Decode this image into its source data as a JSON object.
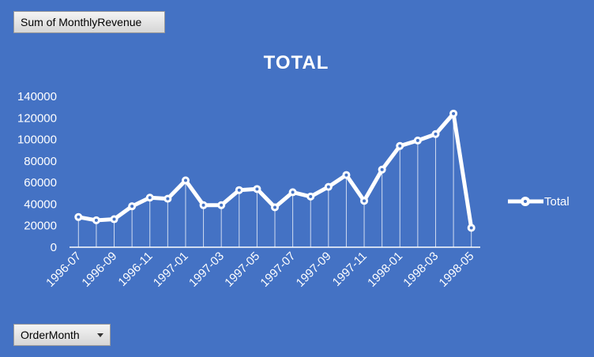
{
  "pivot": {
    "value_field": "Sum of MonthlyRevenue",
    "axis_field": "OrderMonth"
  },
  "colors": {
    "background": "#4472C4",
    "series": "#FFFFFF"
  },
  "chart_data": {
    "type": "line",
    "title": "TOTAL",
    "xlabel": "",
    "ylabel": "",
    "ylim": [
      0,
      140000
    ],
    "yticks": [
      0,
      20000,
      40000,
      60000,
      80000,
      100000,
      120000,
      140000
    ],
    "categories": [
      "1996-07",
      "1996-08",
      "1996-09",
      "1996-10",
      "1996-11",
      "1996-12",
      "1997-01",
      "1997-02",
      "1997-03",
      "1997-04",
      "1997-05",
      "1997-06",
      "1997-07",
      "1997-08",
      "1997-09",
      "1997-10",
      "1997-11",
      "1997-12",
      "1998-01",
      "1998-02",
      "1998-03",
      "1998-04",
      "1998-05"
    ],
    "x_tick_labels": [
      "1996-07",
      "",
      "1996-09",
      "",
      "1996-11",
      "",
      "1997-01",
      "",
      "1997-03",
      "",
      "1997-05",
      "",
      "1997-07",
      "",
      "1997-09",
      "",
      "1997-11",
      "",
      "1998-01",
      "",
      "1998-03",
      "",
      "1998-05"
    ],
    "series": [
      {
        "name": "Total",
        "values": [
          28000,
          25000,
          26000,
          38000,
          46000,
          45000,
          62000,
          39000,
          39000,
          53000,
          54000,
          37000,
          51000,
          47000,
          56000,
          67000,
          43000,
          72000,
          94000,
          99000,
          105000,
          124000,
          18000
        ]
      }
    ],
    "drop_lines": true,
    "grid": false,
    "legend_position": "right"
  }
}
